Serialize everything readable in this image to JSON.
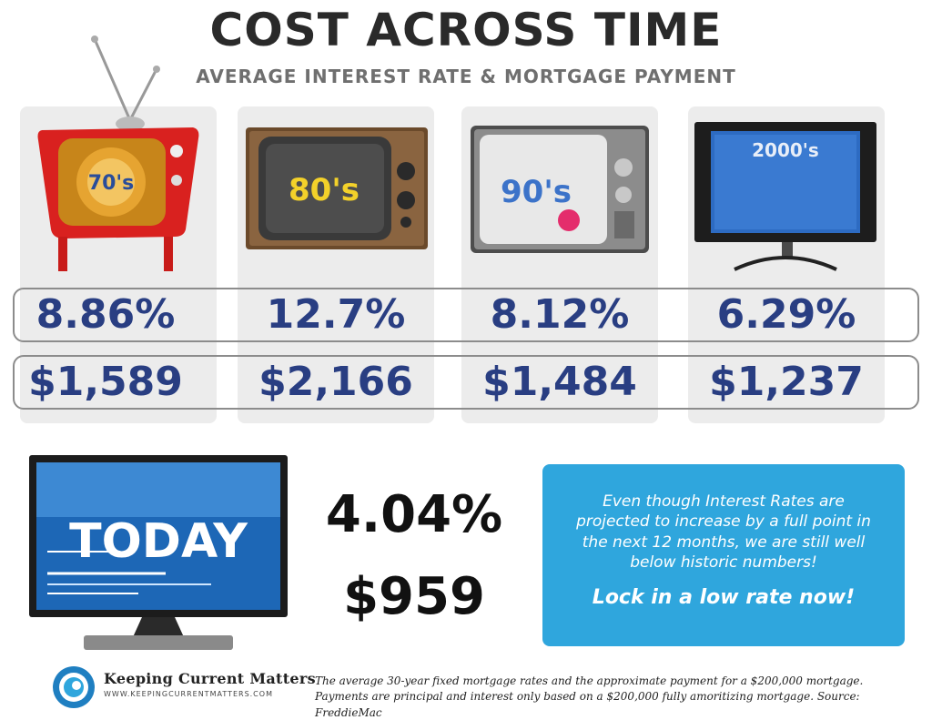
{
  "header": {
    "title": "COST ACROSS TIME",
    "subtitle": "AVERAGE INTEREST RATE & MORTGAGE PAYMENT"
  },
  "eras": [
    {
      "label": "70's",
      "rate": "8.86%",
      "payment": "$1,589",
      "icon": "retro-tv-icon"
    },
    {
      "label": "80's",
      "rate": "12.7%",
      "payment": "$2,166",
      "icon": "wood-tv-icon"
    },
    {
      "label": "90's",
      "rate": "8.12%",
      "payment": "$1,484",
      "icon": "gray-tv-icon"
    },
    {
      "label": "2000's",
      "rate": "6.29%",
      "payment": "$1,237",
      "icon": "flat-screen-tv-icon"
    }
  ],
  "today": {
    "label": "TODAY",
    "rate": "4.04%",
    "payment": "$959",
    "icon": "monitor-icon"
  },
  "callout": {
    "text": "Even though Interest Rates are projected to increase by a full point in the next 12 months, we are still well below historic numbers!",
    "cta": "Lock in a low rate now!"
  },
  "brand": {
    "name": "Keeping Current Matters",
    "url": "WWW.KEEPINGCURRENTMATTERS.COM",
    "icon": "swirl-logo-icon"
  },
  "footnote": {
    "line1": "The average 30-year fixed mortgage rates and the approximate payment for a $200,000 mortgage.",
    "line2": "Payments are principal and interest only based on a $200,000 fully amoritizing mortgage. Source: FreddieMac"
  },
  "colors": {
    "value_blue": "#293e82",
    "callout_blue": "#2fa6dd",
    "panel_gray": "#ececec"
  }
}
